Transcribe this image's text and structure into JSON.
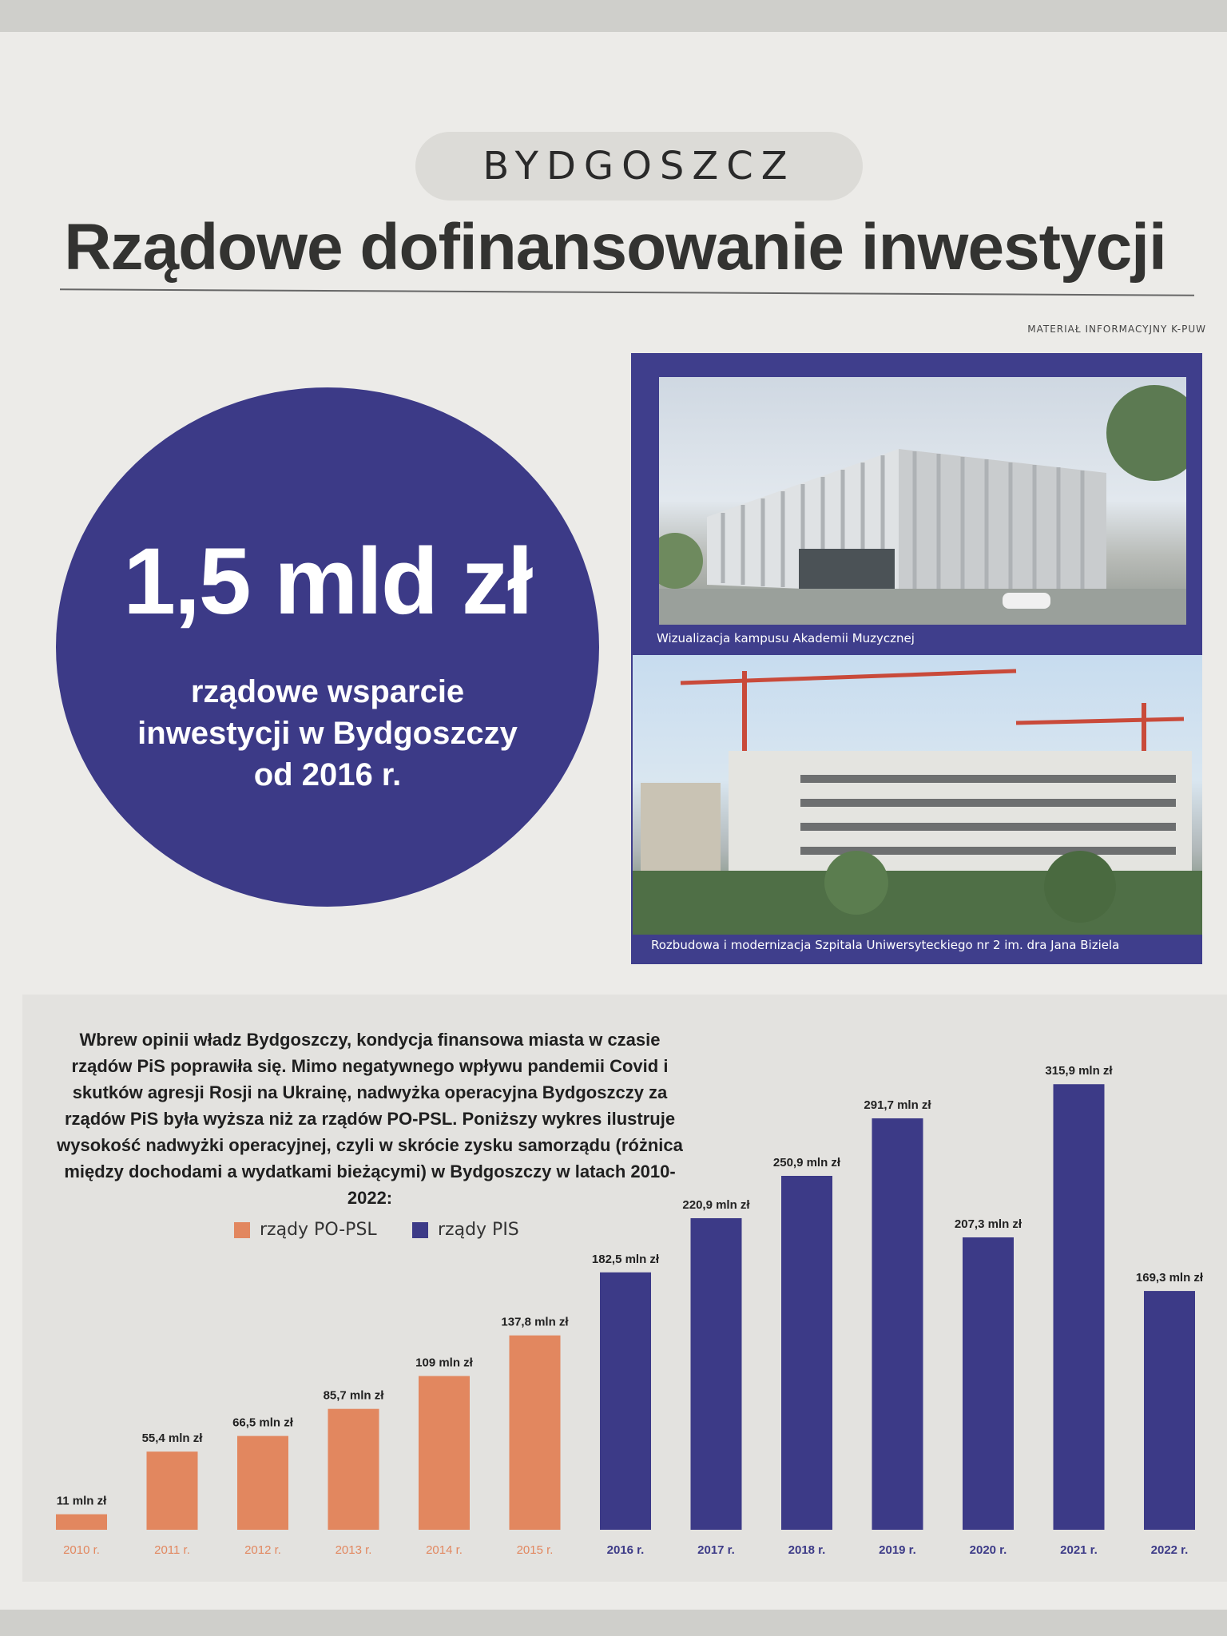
{
  "header": {
    "section": "BYDGOSZCZ",
    "title": "Rządowe dofinansowanie inwestycji",
    "source_note": "MATERIAŁ INFORMACYJNY K-PUW"
  },
  "highlight": {
    "amount": "1,5 mld zł",
    "line1": "rządowe wsparcie",
    "line2": "inwestycji w Bydgoszczy",
    "line3": "od 2016 r."
  },
  "photos": {
    "caption1": "Wizualizacja kampusu Akademii Muzycznej",
    "caption2": "Rozbudowa i modernizacja Szpitala Uniwersyteckiego nr 2 im. dra Jana Biziela"
  },
  "article": {
    "intro": "Wbrew opinii władz Bydgoszczy, kondycja finansowa miasta w czasie rządów PiS poprawiła się. Mimo negatywnego wpływu pandemii Covid i skutków agresji Rosji na Ukrainę, nadwyżka operacyjna Bydgoszczy za rządów PiS była wyższa niż za rządów PO-PSL. Poniższy wykres ilustruje wysokość nadwyżki operacyjnej, czyli w skrócie zysku samorządu (różnica między dochodami a wydatkami bieżącymi) w Bydgoszczy w latach 2010-2022:"
  },
  "colors": {
    "po_psl": "#e2875f",
    "pis": "#3c3a87"
  },
  "chart_data": {
    "type": "bar",
    "categories": [
      "2010 r.",
      "2011 r.",
      "2012 r.",
      "2013 r.",
      "2014 r.",
      "2015 r.",
      "2016 r.",
      "2017 r.",
      "2018 r.",
      "2019 r.",
      "2020 r.",
      "2021 r.",
      "2022 r."
    ],
    "values": [
      11,
      55.4,
      66.5,
      85.7,
      109,
      137.8,
      182.5,
      220.9,
      250.9,
      291.7,
      207.3,
      315.9,
      169.3
    ],
    "value_labels": [
      "11 mln zł",
      "55,4 mln zł",
      "66,5 mln zł",
      "85,7 mln zł",
      "109 mln zł",
      "137,8 mln zł",
      "182,5 mln zł",
      "220,9 mln zł",
      "250,9 mln zł",
      "291,7 mln zł",
      "207,3 mln zł",
      "315,9 mln zł",
      "169,3 mln zł"
    ],
    "groups": [
      "po_psl",
      "po_psl",
      "po_psl",
      "po_psl",
      "po_psl",
      "po_psl",
      "pis",
      "pis",
      "pis",
      "pis",
      "pis",
      "pis",
      "pis"
    ],
    "legend": [
      {
        "key": "po_psl",
        "label": "rządy PO-PSL"
      },
      {
        "key": "pis",
        "label": "rządy PIS"
      }
    ],
    "ylim": [
      0,
      320
    ],
    "title": "",
    "xlabel": "",
    "ylabel": ""
  }
}
